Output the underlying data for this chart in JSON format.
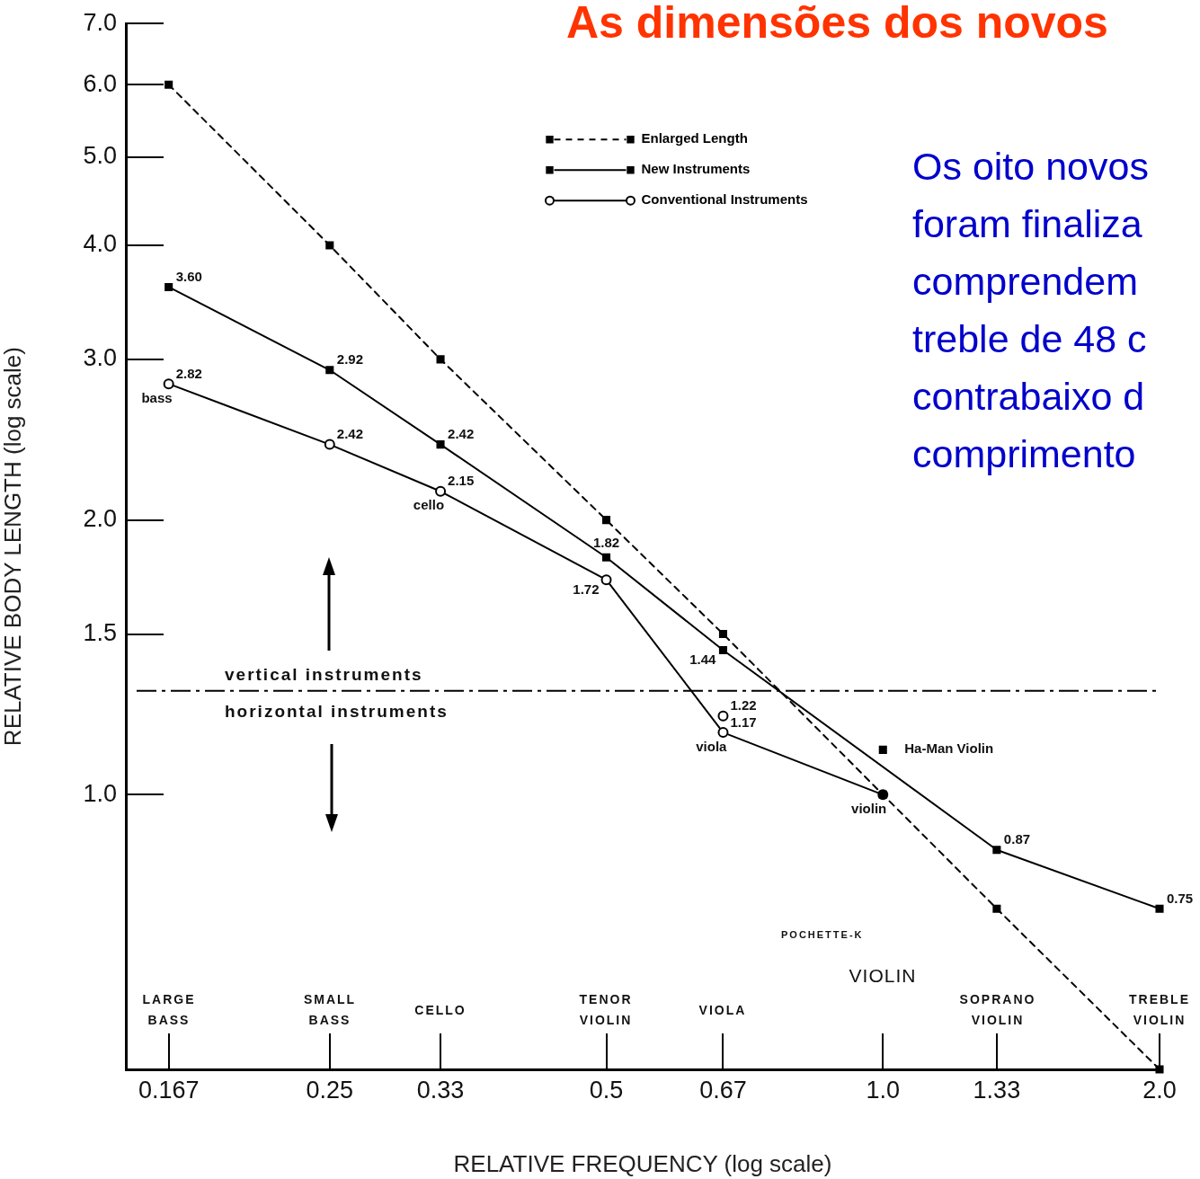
{
  "chart_data": {
    "type": "line",
    "title": "As dimensões dos novos",
    "xlabel": "RELATIVE FREQUENCY (log scale)",
    "ylabel": "RELATIVE BODY LENGTH (log scale)",
    "log": "xy",
    "grid": false,
    "legend": "top",
    "xlim": [
      0.15,
      2.0
    ],
    "xticks": [
      0.167,
      0.25,
      0.33,
      0.5,
      0.67,
      {
        "value": 1.0,
        "label": "1.0"
      },
      1.33,
      {
        "value": 2.0,
        "label": "2.0"
      }
    ],
    "ylim": [
      0.5,
      7.0
    ],
    "yticks": [
      {
        "value": 1.0,
        "label": "1.0"
      },
      1.5,
      {
        "value": 2.0,
        "label": "2.0"
      },
      {
        "value": 3.0,
        "label": "3.0"
      },
      {
        "value": 4.0,
        "label": "4.0"
      },
      {
        "value": 5.0,
        "label": "5.0"
      },
      {
        "value": 6.0,
        "label": "6.0"
      },
      {
        "value": 7.0,
        "label": "7.0"
      }
    ],
    "series": [
      {
        "name": "Enlarged Length",
        "color": "#000000",
        "x": [
          0.167,
          0.25,
          0.33,
          0.5,
          0.67,
          1.0,
          1.33,
          2.0
        ],
        "values": [
          6.0,
          4.0,
          3.0,
          2.0,
          1.5,
          1.0,
          0.75,
          0.5
        ],
        "marker": "square",
        "line_style": "dashed"
      },
      {
        "name": "New Instruments",
        "color": "#000000",
        "x": [
          0.167,
          0.25,
          0.33,
          0.5,
          0.67,
          1.33,
          2.0
        ],
        "values": [
          3.6,
          2.92,
          2.42,
          1.82,
          1.44,
          0.87,
          0.75
        ],
        "value_labels": [
          "3.60",
          "2.92",
          "2.42",
          "1.82",
          "1.44",
          "0.87",
          "0.75"
        ],
        "marker": "square",
        "line_style": "solid"
      },
      {
        "name": "Conventional Instruments",
        "color": "#000000",
        "x": [
          0.167,
          0.25,
          0.33,
          0.5,
          0.67,
          1.0
        ],
        "values": [
          2.82,
          2.42,
          2.15,
          1.72,
          1.17,
          1.0
        ],
        "value_labels": [
          "2.82",
          "2.42",
          "2.15",
          "1.72",
          "1.17",
          null
        ],
        "marker": "circle",
        "line_style": "solid"
      },
      {
        "type": "scatter",
        "color": "#000000",
        "x": [
          0.67
        ],
        "values": [
          1.22
        ],
        "value_labels": [
          "1.22"
        ],
        "marker": "circle"
      },
      {
        "name": "Ha-Man Violin",
        "type": "scatter",
        "color": "#000000",
        "x": [
          1.0
        ],
        "values": [
          1.12
        ],
        "marker": "square"
      }
    ],
    "ref_lines": [
      {
        "axis": "y",
        "value": 1.3,
        "color": "#000000",
        "line_style": "dashed"
      }
    ],
    "annotations": [
      {
        "text": "bass",
        "x": 0.167,
        "y": 2.82
      },
      {
        "text": "cello",
        "x": 0.33,
        "y": 2.15
      },
      {
        "text": "viola",
        "x": 0.67,
        "y": 1.17
      },
      {
        "text": "violin",
        "x": 1.0,
        "y": 1.0
      },
      "LARGE\nBASS",
      "SMALL\nBASS",
      "CELLO",
      "TENOR\nVIOLIN",
      "VIOLA",
      "VIOLIN",
      "SOPRANO\nVIOLIN",
      "TREBLE\nVIOLIN",
      "vertical instruments",
      "horizontal instruments",
      "POCHETTE-K",
      "Os oito novos\nforam finaliza\ncomprendem\ntreble de 48 c\ncontrabaixo d\ncomprimento"
    ]
  }
}
